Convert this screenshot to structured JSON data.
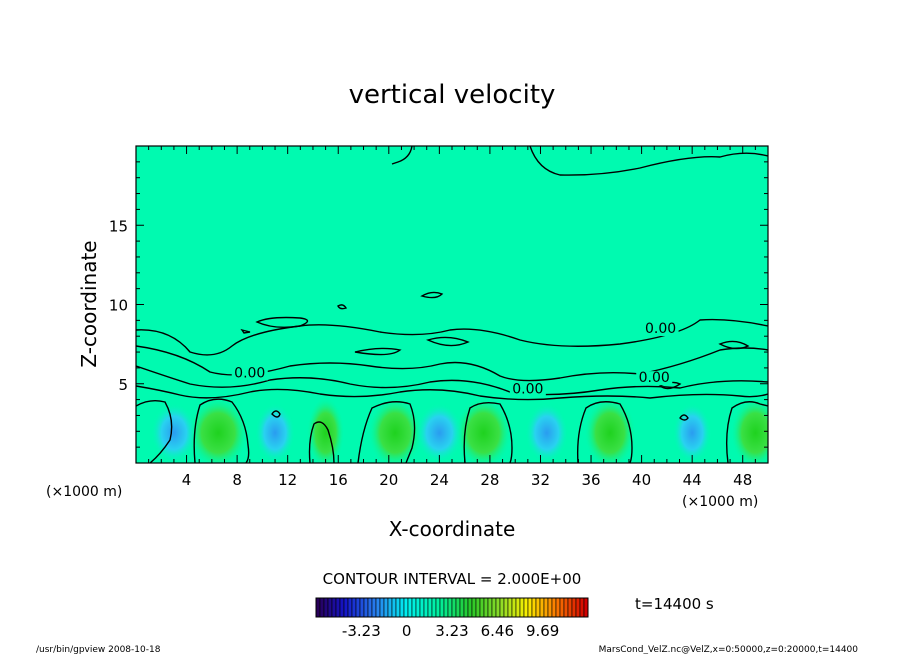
{
  "chart_data": {
    "type": "heatmap",
    "title": "vertical velocity",
    "xlabel": "X-coordinate",
    "ylabel": "Z-coordinate",
    "x_unit_left": "(×1000 m)",
    "x_unit_right": "(×1000 m)",
    "xlim": [
      0,
      50
    ],
    "ylim": [
      0,
      20
    ],
    "x_ticks": [
      "4",
      "8",
      "12",
      "16",
      "20",
      "24",
      "28",
      "32",
      "36",
      "40",
      "44",
      "48"
    ],
    "y_ticks": [
      "5",
      "10",
      "15"
    ],
    "contour_interval_text": "CONTOUR INTERVAL = 2.000E+00",
    "time_text": "t=14400 s",
    "contour_labels": [
      {
        "text": "0.00",
        "x": 9.0,
        "z": 5.4
      },
      {
        "text": "0.00",
        "x": 31.0,
        "z": 4.4
      },
      {
        "text": "0.00",
        "x": 41.0,
        "z": 5.1
      },
      {
        "text": "0.00",
        "x": 41.5,
        "z": 8.2
      }
    ],
    "colorbar": {
      "min": -6.46,
      "max": 12.92,
      "tick_labels": [
        "-3.23",
        "0",
        "3.23",
        "6.46",
        "9.69"
      ],
      "tick_values": [
        -3.23,
        0,
        3.23,
        6.46,
        9.69
      ],
      "background_value": 0
    },
    "updrafts": [
      {
        "x": 6.5,
        "w": 6.8
      },
      {
        "x": 20.5,
        "w": 5.5
      },
      {
        "x": 27.5,
        "w": 6.0
      },
      {
        "x": 37.5,
        "w": 5.0
      },
      {
        "x": 49.0,
        "w": 4.5
      },
      {
        "x": 15.0,
        "w": 2.0
      }
    ],
    "downdrafts": [
      {
        "x": 3.0,
        "w": -3.0
      },
      {
        "x": 11.0,
        "w": -2.0
      },
      {
        "x": 24.0,
        "w": -3.2
      },
      {
        "x": 32.5,
        "w": -2.5
      },
      {
        "x": 44.0,
        "w": -1.8
      }
    ]
  },
  "footer": {
    "left": "/usr/bin/gpview   2008-10-18",
    "right": "MarsCond_VelZ.nc@VelZ,x=0:50000,z=0:20000,t=14400"
  },
  "colors": {
    "background_field": "#00fab0",
    "frame": "#000000"
  }
}
